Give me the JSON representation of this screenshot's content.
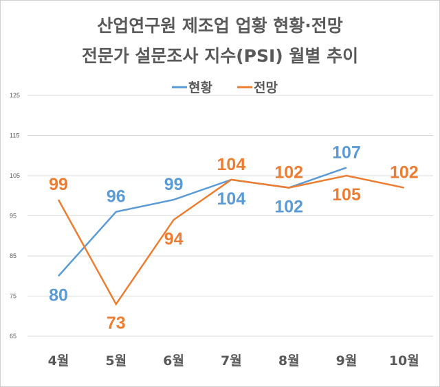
{
  "chart_data": {
    "type": "line",
    "title": [
      "산업연구원 제조업 업황 현황·전망",
      "전문가 설문조사 지수(PSI) 월별 추이"
    ],
    "categories": [
      "4월",
      "5월",
      "6월",
      "7월",
      "8월",
      "9월",
      "10월"
    ],
    "series": [
      {
        "name": "현황",
        "color": "#5b9bd5",
        "values": [
          80,
          96,
          99,
          104,
          102,
          107,
          null
        ],
        "label_pos": [
          "below",
          "above",
          "above",
          "below",
          "below",
          "above",
          null
        ]
      },
      {
        "name": "전망",
        "color": "#ed7d31",
        "values": [
          99,
          73,
          94,
          104,
          102,
          105,
          102
        ],
        "label_pos": [
          "above",
          "below",
          "below",
          "above",
          "above",
          "below",
          "above"
        ]
      }
    ],
    "ylim": [
      65,
      125
    ],
    "yticks": [
      65,
      75,
      85,
      95,
      105,
      115,
      125
    ],
    "grid": true,
    "legend": "top-center",
    "xlabel": "",
    "ylabel": ""
  }
}
